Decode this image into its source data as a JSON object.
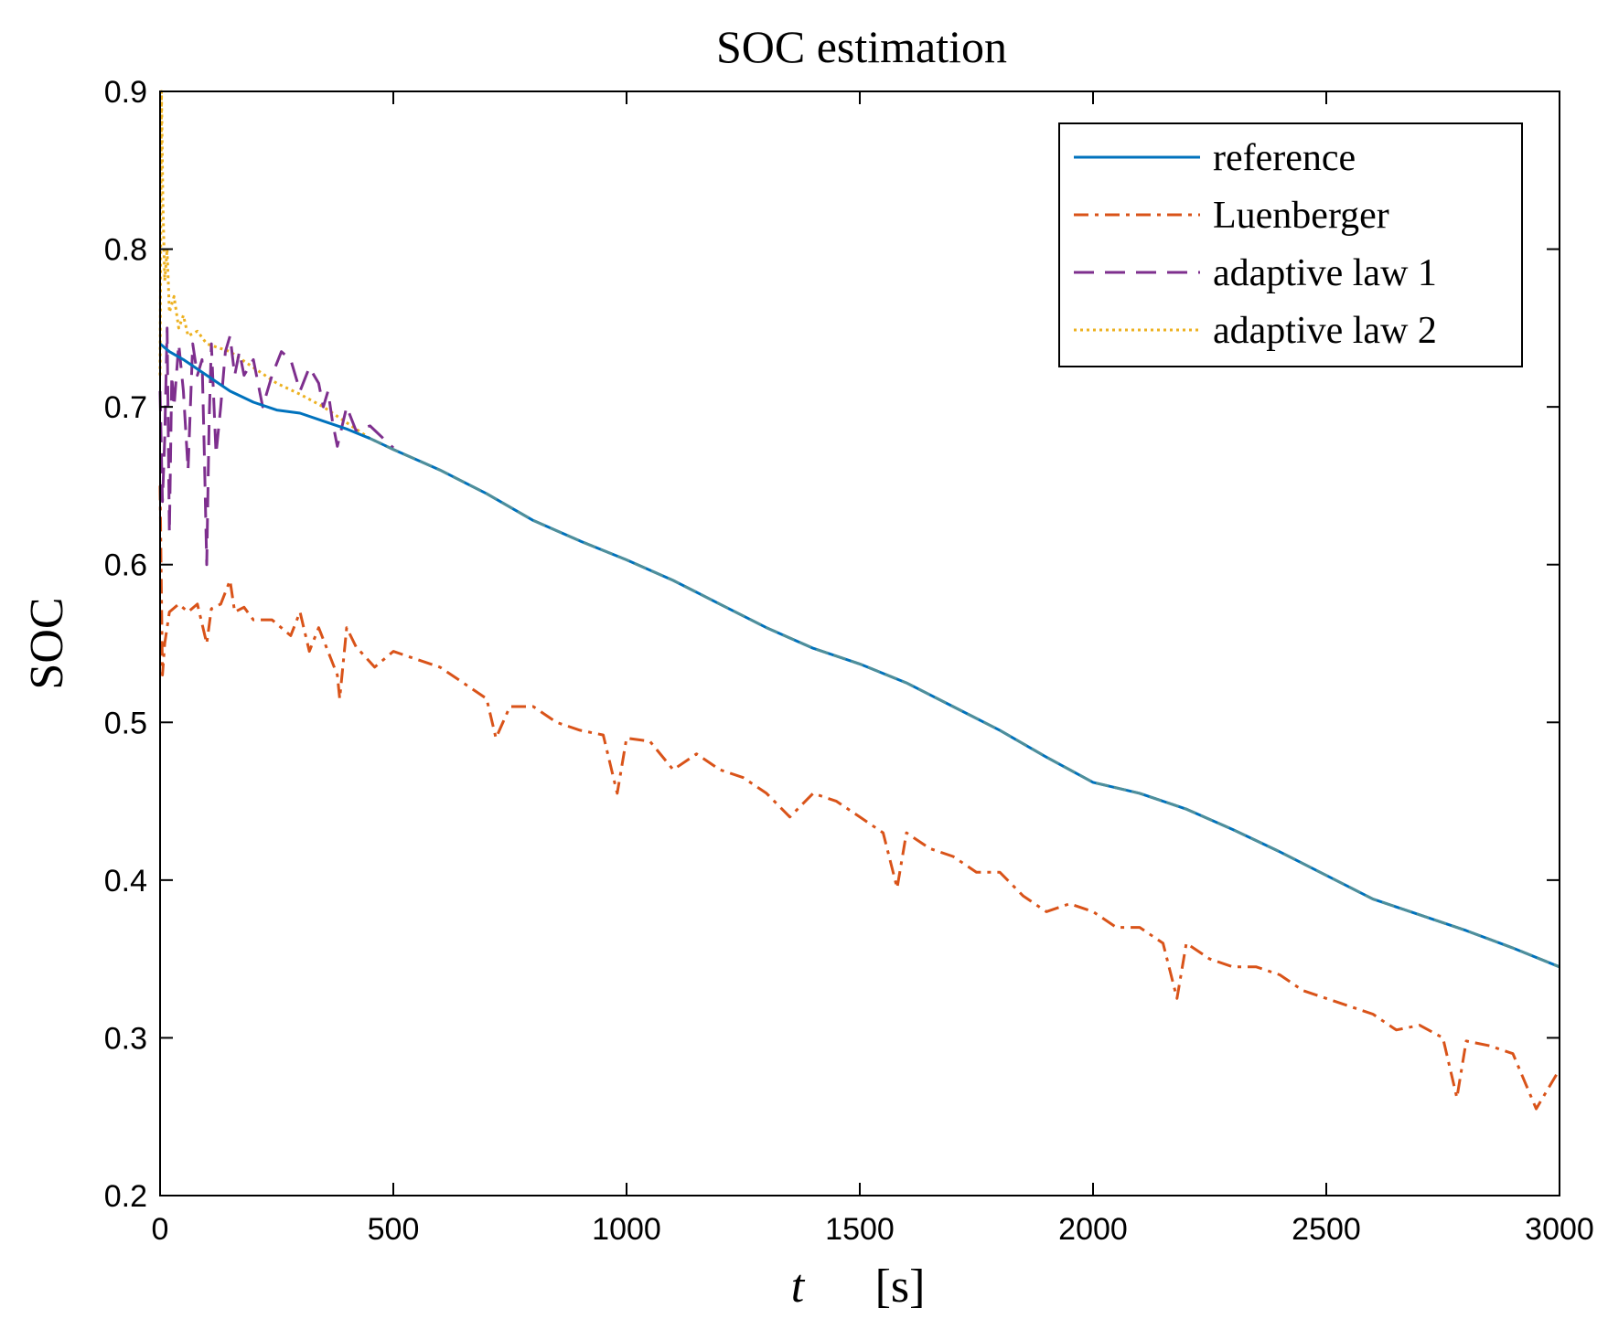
{
  "chart_data": {
    "type": "line",
    "title": "SOC estimation",
    "xlabel": {
      "variable": "t",
      "unit": "[s]"
    },
    "ylabel": "SOC",
    "xlim": [
      0,
      3000
    ],
    "ylim": [
      0.2,
      0.9
    ],
    "xticks": [
      "0",
      "500",
      "1000",
      "1500",
      "2000",
      "2500",
      "3000"
    ],
    "xtick_values": [
      0,
      500,
      1000,
      1500,
      2000,
      2500,
      3000
    ],
    "yticks": [
      "0.2",
      "0.3",
      "0.4",
      "0.5",
      "0.6",
      "0.7",
      "0.8",
      "0.9"
    ],
    "ytick_values": [
      0.2,
      0.3,
      0.4,
      0.5,
      0.6,
      0.7,
      0.8,
      0.9
    ],
    "grid": false,
    "legend_position": "top-right",
    "series": [
      {
        "name": "reference",
        "color": "#0072BD",
        "style": "solid",
        "x": [
          0,
          20,
          50,
          100,
          150,
          200,
          250,
          300,
          350,
          400,
          450,
          500,
          600,
          700,
          800,
          900,
          1000,
          1100,
          1200,
          1300,
          1400,
          1500,
          1600,
          1700,
          1800,
          1900,
          2000,
          2100,
          2200,
          2300,
          2400,
          2500,
          2600,
          2700,
          2800,
          2900,
          3000
        ],
        "y": [
          0.74,
          0.735,
          0.73,
          0.72,
          0.71,
          0.703,
          0.698,
          0.696,
          0.691,
          0.686,
          0.68,
          0.673,
          0.66,
          0.645,
          0.628,
          0.615,
          0.603,
          0.59,
          0.575,
          0.56,
          0.547,
          0.537,
          0.525,
          0.51,
          0.495,
          0.478,
          0.462,
          0.455,
          0.445,
          0.432,
          0.418,
          0.403,
          0.388,
          0.378,
          0.368,
          0.357,
          0.345
        ]
      },
      {
        "name": "Luenberger",
        "color": "#D95319",
        "style": "dashdot",
        "x": [
          0,
          5,
          10,
          20,
          40,
          60,
          80,
          100,
          110,
          130,
          150,
          160,
          180,
          200,
          240,
          280,
          300,
          320,
          340,
          380,
          385,
          400,
          420,
          460,
          500,
          550,
          600,
          650,
          700,
          720,
          750,
          800,
          850,
          900,
          950,
          980,
          1000,
          1050,
          1100,
          1150,
          1200,
          1250,
          1300,
          1350,
          1400,
          1450,
          1500,
          1550,
          1580,
          1600,
          1650,
          1700,
          1750,
          1800,
          1850,
          1900,
          1950,
          2000,
          2050,
          2100,
          2150,
          2180,
          2200,
          2250,
          2300,
          2350,
          2400,
          2450,
          2500,
          2550,
          2600,
          2650,
          2700,
          2750,
          2780,
          2800,
          2850,
          2900,
          2950,
          3000
        ],
        "y": [
          0.65,
          0.53,
          0.55,
          0.57,
          0.575,
          0.57,
          0.575,
          0.55,
          0.572,
          0.575,
          0.59,
          0.57,
          0.573,
          0.565,
          0.565,
          0.555,
          0.57,
          0.545,
          0.56,
          0.53,
          0.515,
          0.56,
          0.548,
          0.535,
          0.545,
          0.54,
          0.535,
          0.525,
          0.515,
          0.49,
          0.51,
          0.51,
          0.5,
          0.495,
          0.492,
          0.455,
          0.49,
          0.488,
          0.47,
          0.48,
          0.47,
          0.465,
          0.455,
          0.44,
          0.455,
          0.45,
          0.44,
          0.43,
          0.395,
          0.43,
          0.42,
          0.415,
          0.405,
          0.405,
          0.39,
          0.38,
          0.385,
          0.38,
          0.37,
          0.37,
          0.36,
          0.325,
          0.36,
          0.35,
          0.345,
          0.345,
          0.34,
          0.33,
          0.325,
          0.32,
          0.315,
          0.305,
          0.308,
          0.3,
          0.262,
          0.298,
          0.295,
          0.29,
          0.255,
          0.28
        ]
      },
      {
        "name": "adaptive law 1",
        "color": "#7E2F8E",
        "style": "dashed",
        "x": [
          0,
          5,
          10,
          15,
          20,
          25,
          30,
          40,
          50,
          60,
          70,
          80,
          90,
          95,
          100,
          105,
          110,
          120,
          130,
          140,
          150,
          160,
          170,
          180,
          200,
          220,
          240,
          260,
          280,
          300,
          320,
          340,
          350,
          360,
          370,
          380,
          400,
          420,
          450,
          500
        ],
        "y": [
          0.71,
          0.64,
          0.68,
          0.75,
          0.62,
          0.72,
          0.7,
          0.74,
          0.71,
          0.66,
          0.74,
          0.72,
          0.73,
          0.67,
          0.6,
          0.69,
          0.74,
          0.67,
          0.7,
          0.735,
          0.745,
          0.72,
          0.735,
          0.72,
          0.73,
          0.7,
          0.72,
          0.735,
          0.73,
          0.71,
          0.725,
          0.715,
          0.7,
          0.71,
          0.69,
          0.675,
          0.7,
          0.685,
          0.688,
          0.674
        ]
      },
      {
        "name": "adaptive law 2",
        "color": "#EDB120",
        "style": "dotted",
        "x": [
          0,
          3,
          6,
          10,
          15,
          20,
          30,
          40,
          50,
          60,
          80,
          100,
          120,
          150,
          200,
          250,
          300,
          350,
          400,
          450,
          500
        ],
        "y": [
          0.72,
          0.9,
          0.83,
          0.78,
          0.8,
          0.76,
          0.77,
          0.75,
          0.758,
          0.745,
          0.748,
          0.74,
          0.738,
          0.735,
          0.725,
          0.715,
          0.708,
          0.7,
          0.69,
          0.68,
          0.673
        ]
      }
    ]
  }
}
